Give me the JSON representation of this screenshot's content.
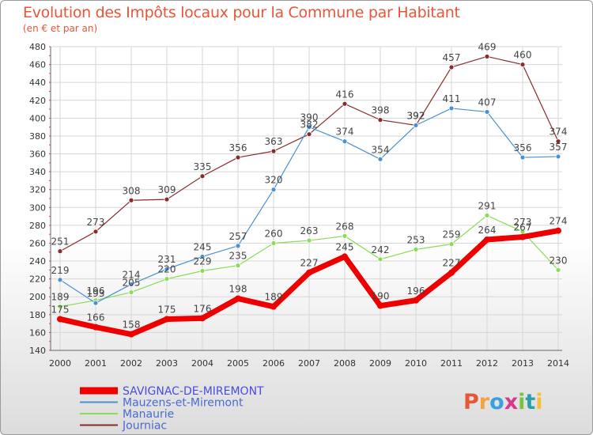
{
  "header": {
    "title": "Evolution des Impôts locaux pour la Commune par Habitant",
    "subtitle": "(en € et par an)"
  },
  "logo": {
    "letters": [
      "P",
      "r",
      "o",
      "x",
      "i",
      "t",
      "i"
    ],
    "colors": [
      "#e8563a",
      "#f2a33a",
      "#3aa0e0",
      "#d63a8e",
      "#7cc242",
      "#2aa0a8",
      "#f2c03a"
    ]
  },
  "chart_data": {
    "type": "line",
    "title": "Evolution des Impôts locaux pour la Commune par Habitant",
    "subtitle": "(en € et par an)",
    "xlabel": "",
    "ylabel": "",
    "x": [
      "2000",
      "2001",
      "2002",
      "2003",
      "2004",
      "2005",
      "2006",
      "2007",
      "2008",
      "2009",
      "2010",
      "2011",
      "2012",
      "2013",
      "2014"
    ],
    "ylim": [
      140,
      480
    ],
    "yticks": [
      "140",
      "160",
      "180",
      "200",
      "220",
      "240",
      "260",
      "280",
      "300",
      "320",
      "340",
      "360",
      "380",
      "400",
      "420",
      "440",
      "460",
      "480"
    ],
    "grid": true,
    "legend_position": "bottom-left",
    "series": [
      {
        "name": "SAVIGNAC-DE-MIREMONT",
        "color": "#ee0000",
        "values": [
          175,
          166,
          158,
          175,
          176,
          198,
          189,
          227,
          245,
          190,
          196,
          227,
          264,
          267,
          274
        ],
        "labels": [
          "175",
          "166",
          "158",
          "175",
          "176",
          "198",
          "189",
          "227",
          "245",
          "190",
          "196",
          "227",
          "264",
          "267",
          "274"
        ]
      },
      {
        "name": "Mauzens-et-Miremont",
        "color": "#4a90d2",
        "values": [
          219,
          193,
          214,
          231,
          245,
          257,
          320,
          390,
          374,
          354,
          392,
          411,
          407,
          356,
          357
        ],
        "labels": [
          "219",
          "193",
          "214",
          "231",
          "245",
          "257",
          "320",
          "390",
          "374",
          "354",
          "392",
          "411",
          "407",
          "356",
          "357"
        ]
      },
      {
        "name": "Manaurie",
        "color": "#88dd55",
        "values": [
          189,
          196,
          205,
          220,
          229,
          235,
          260,
          263,
          268,
          242,
          253,
          259,
          291,
          273,
          230
        ],
        "labels": [
          "189",
          "196",
          "205",
          "220",
          "229",
          "235",
          "260",
          "263",
          "268",
          "242",
          "253",
          "259",
          "291",
          "273",
          "230"
        ]
      },
      {
        "name": "Journiac",
        "color": "#8a2a2a",
        "values": [
          251,
          273,
          308,
          309,
          335,
          356,
          363,
          382,
          416,
          398,
          392,
          457,
          469,
          460,
          374
        ],
        "labels": [
          "251",
          "273",
          "308",
          "309",
          "335",
          "356",
          "363",
          "382",
          "416",
          "398",
          "392",
          "457",
          "469",
          "460",
          "374"
        ]
      }
    ]
  }
}
